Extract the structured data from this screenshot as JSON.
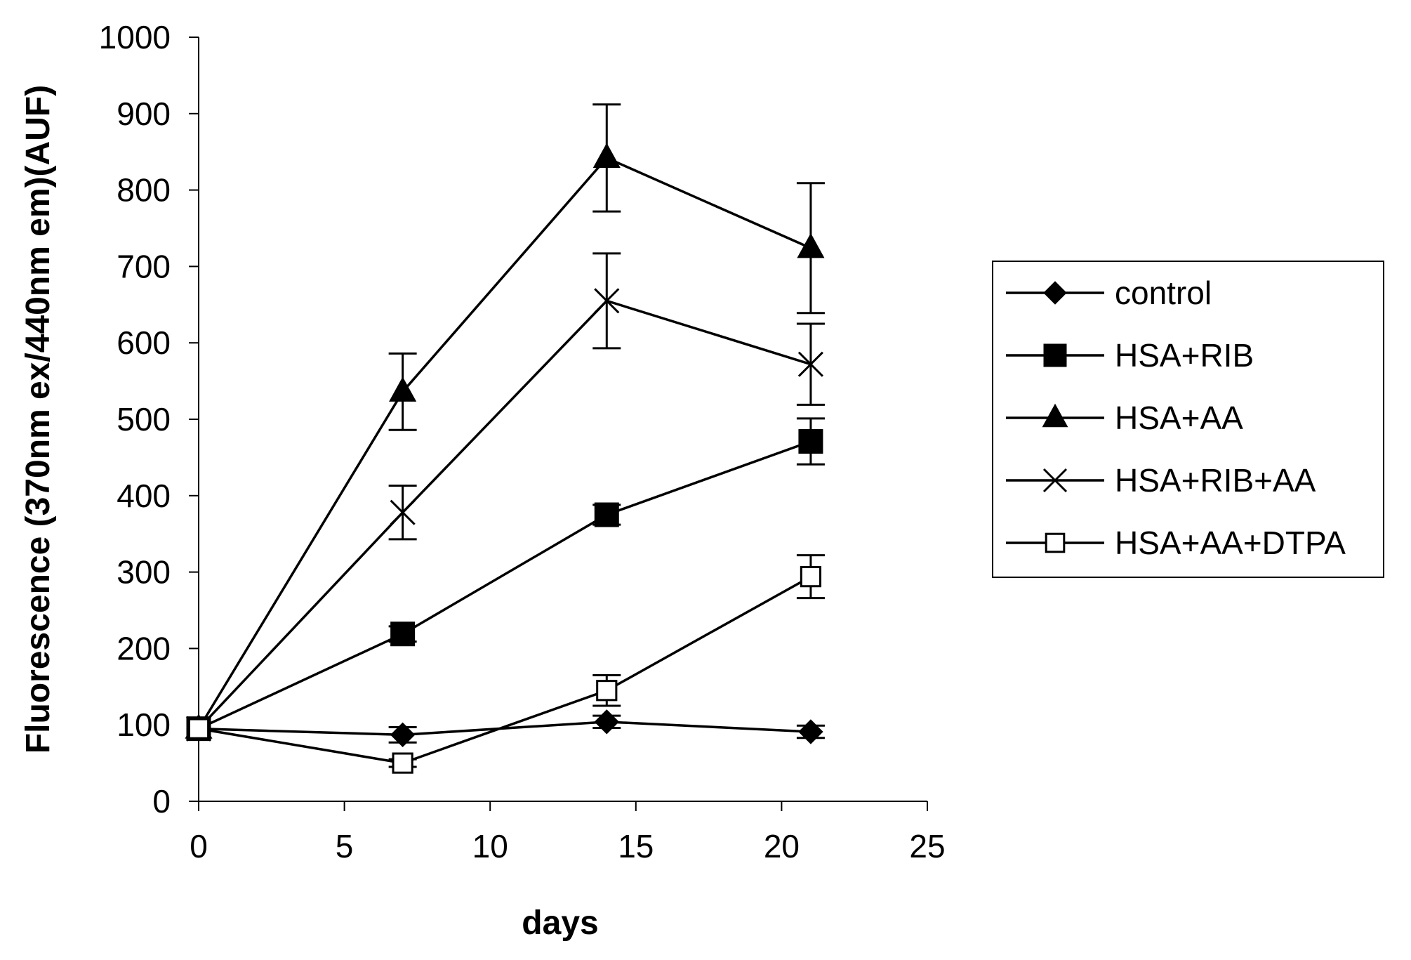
{
  "chart_data": {
    "type": "line",
    "title": "",
    "xlabel": "days",
    "ylabel": "Fluorescence (370nm ex/440nm em)(AUF)",
    "xlim": [
      0,
      25
    ],
    "ylim": [
      0,
      1000
    ],
    "x_ticks": [
      "0",
      "5",
      "10",
      "15",
      "20",
      "25"
    ],
    "y_ticks": [
      "0",
      "100",
      "200",
      "300",
      "400",
      "500",
      "600",
      "700",
      "800",
      "900",
      "1000"
    ],
    "x": [
      0,
      7,
      14,
      21
    ],
    "grid": false,
    "legend_position": "right",
    "series": [
      {
        "name": "control",
        "marker": "diamond",
        "values": [
          95,
          87,
          104,
          91
        ],
        "errors": [
          0,
          10,
          8,
          8
        ]
      },
      {
        "name": "HSA+RIB",
        "marker": "square",
        "values": [
          95,
          219,
          375,
          471
        ],
        "errors": [
          0,
          10,
          13,
          30
        ]
      },
      {
        "name": "HSA+AA",
        "marker": "triangle",
        "values": [
          95,
          536,
          842,
          724
        ],
        "errors": [
          0,
          50,
          70,
          85
        ]
      },
      {
        "name": "HSA+RIB+AA",
        "marker": "x",
        "values": [
          95,
          378,
          655,
          572
        ],
        "errors": [
          0,
          35,
          62,
          53
        ]
      },
      {
        "name": "HSA+AA+DTPA",
        "marker": "open-square",
        "values": [
          95,
          50,
          145,
          294
        ],
        "errors": [
          0,
          5,
          20,
          28
        ]
      }
    ]
  }
}
